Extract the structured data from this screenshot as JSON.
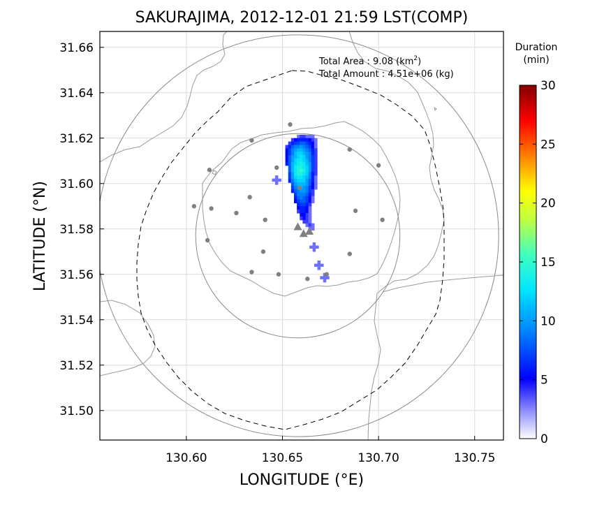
{
  "chart_data": {
    "type": "map",
    "title": "SAKURAJIMA, 2012-12-01 21:59 LST(COMP)",
    "xlabel": "LONGITUDE (°E)",
    "ylabel": "LATITUDE (°N)",
    "xlim": [
      130.555,
      130.765
    ],
    "ylim": [
      31.487,
      31.667
    ],
    "xticks": [
      130.6,
      130.65,
      130.7,
      130.75
    ],
    "yticks": [
      31.5,
      31.52,
      31.54,
      31.56,
      31.58,
      31.6,
      31.62,
      31.64,
      31.66
    ],
    "grid": true,
    "annotations": {
      "area_label": "Total Area   : 9.08 (km",
      "area_sup": "2",
      "area_close": ")",
      "amount": "Total Amount : 4.51e+06 (kg)"
    },
    "colorbar": {
      "label_line1": "Duration",
      "label_line2": "(min)",
      "range": [
        0,
        30
      ],
      "ticks": [
        0,
        5,
        10,
        15,
        20,
        25,
        30
      ]
    },
    "range_circles": [
      {
        "center": [
          130.658,
          31.577
        ],
        "radius_lat": 0.045
      },
      {
        "center": [
          130.658,
          31.577
        ],
        "radius_lat": 0.0885
      }
    ],
    "vents": [
      {
        "lon": 130.658,
        "lat": 31.581
      },
      {
        "lon": 130.661,
        "lat": 31.578
      },
      {
        "lon": 130.664,
        "lat": 31.579
      }
    ],
    "stations": [
      {
        "lon": 130.654,
        "lat": 31.626
      },
      {
        "lon": 130.634,
        "lat": 31.619
      },
      {
        "lon": 130.685,
        "lat": 31.615
      },
      {
        "lon": 130.7,
        "lat": 31.608
      },
      {
        "lon": 130.612,
        "lat": 31.606
      },
      {
        "lon": 130.647,
        "lat": 31.607
      },
      {
        "lon": 130.659,
        "lat": 31.598
      },
      {
        "lon": 130.604,
        "lat": 31.59
      },
      {
        "lon": 130.613,
        "lat": 31.589
      },
      {
        "lon": 130.633,
        "lat": 31.594
      },
      {
        "lon": 130.626,
        "lat": 31.587
      },
      {
        "lon": 130.641,
        "lat": 31.584
      },
      {
        "lon": 130.688,
        "lat": 31.588
      },
      {
        "lon": 130.702,
        "lat": 31.584
      },
      {
        "lon": 130.611,
        "lat": 31.575
      },
      {
        "lon": 130.64,
        "lat": 31.57
      },
      {
        "lon": 130.685,
        "lat": 31.569
      },
      {
        "lon": 130.634,
        "lat": 31.561
      },
      {
        "lon": 130.648,
        "lat": 31.56
      },
      {
        "lon": 130.663,
        "lat": 31.558
      },
      {
        "lon": 130.673,
        "lat": 31.56
      }
    ],
    "plume": {
      "cell_lon": 0.0015,
      "cell_lat": 0.0015,
      "rows": [
        {
          "lat": 31.62,
          "lon0": 130.6575,
          "vals": [
            3,
            4,
            4,
            3,
            3,
            3
          ]
        },
        {
          "lat": 31.6185,
          "lon0": 130.6545,
          "vals": [
            4,
            5,
            6,
            6,
            6,
            6,
            5,
            4,
            3
          ]
        },
        {
          "lat": 31.617,
          "lon0": 130.653,
          "vals": [
            4,
            6,
            7,
            7,
            8,
            8,
            7,
            6,
            5,
            3
          ]
        },
        {
          "lat": 31.6155,
          "lon0": 130.6515,
          "vals": [
            4,
            6,
            8,
            9,
            9,
            10,
            9,
            8,
            7,
            5,
            3
          ]
        },
        {
          "lat": 31.614,
          "lon0": 130.6515,
          "vals": [
            5,
            7,
            9,
            10,
            11,
            11,
            10,
            9,
            8,
            6,
            4
          ]
        },
        {
          "lat": 31.6125,
          "lon0": 130.6515,
          "vals": [
            5,
            7,
            9,
            11,
            12,
            12,
            11,
            10,
            9,
            6,
            4
          ]
        },
        {
          "lat": 31.611,
          "lon0": 130.6515,
          "vals": [
            5,
            8,
            10,
            11,
            12,
            13,
            12,
            10,
            9,
            7,
            4
          ]
        },
        {
          "lat": 31.6095,
          "lon0": 130.6515,
          "vals": [
            5,
            8,
            10,
            12,
            13,
            13,
            12,
            11,
            9,
            7,
            4
          ]
        },
        {
          "lat": 31.608,
          "lon0": 130.6515,
          "vals": [
            6,
            8,
            11,
            12,
            13,
            14,
            13,
            11,
            10,
            7,
            4
          ]
        },
        {
          "lat": 31.6065,
          "lon0": 130.653,
          "vals": [
            8,
            11,
            13,
            14,
            14,
            13,
            12,
            10,
            7,
            4
          ]
        },
        {
          "lat": 31.605,
          "lon0": 130.653,
          "vals": [
            8,
            11,
            13,
            14,
            15,
            14,
            12,
            10,
            7,
            4
          ]
        },
        {
          "lat": 31.6035,
          "lon0": 130.653,
          "vals": [
            7,
            10,
            13,
            14,
            14,
            13,
            12,
            9,
            6,
            4
          ]
        },
        {
          "lat": 31.602,
          "lon0": 130.653,
          "vals": [
            7,
            10,
            12,
            13,
            13,
            12,
            11,
            9,
            6,
            3
          ]
        },
        {
          "lat": 31.6005,
          "lon0": 130.653,
          "vals": [
            6,
            9,
            11,
            12,
            12,
            12,
            10,
            8,
            6,
            3
          ]
        },
        {
          "lat": 31.599,
          "lon0": 130.6545,
          "vals": [
            8,
            10,
            11,
            11,
            11,
            10,
            8,
            5,
            3
          ]
        },
        {
          "lat": 31.5975,
          "lon0": 130.6545,
          "vals": [
            7,
            9,
            10,
            11,
            10,
            9,
            7,
            5,
            3
          ]
        },
        {
          "lat": 31.596,
          "lon0": 130.6545,
          "vals": [
            6,
            8,
            9,
            10,
            10,
            9,
            7,
            4
          ]
        },
        {
          "lat": 31.5945,
          "lon0": 130.656,
          "vals": [
            7,
            9,
            9,
            9,
            8,
            6,
            4
          ]
        },
        {
          "lat": 31.593,
          "lon0": 130.656,
          "vals": [
            6,
            8,
            9,
            8,
            7,
            5,
            3
          ]
        },
        {
          "lat": 31.5915,
          "lon0": 130.656,
          "vals": [
            5,
            7,
            8,
            8,
            7,
            5,
            3
          ]
        },
        {
          "lat": 31.59,
          "lon0": 130.6575,
          "vals": [
            6,
            7,
            7,
            6,
            4
          ]
        },
        {
          "lat": 31.5885,
          "lon0": 130.6575,
          "vals": [
            5,
            6,
            6,
            5,
            3
          ]
        },
        {
          "lat": 31.587,
          "lon0": 130.6575,
          "vals": [
            4,
            6,
            6,
            5,
            3
          ]
        },
        {
          "lat": 31.5855,
          "lon0": 130.659,
          "vals": [
            5,
            5,
            4,
            3
          ]
        },
        {
          "lat": 31.584,
          "lon0": 130.659,
          "vals": [
            4,
            5,
            4,
            3
          ]
        },
        {
          "lat": 31.5825,
          "lon0": 130.6605,
          "vals": [
            4,
            4,
            3
          ]
        },
        {
          "lat": 31.581,
          "lon0": 130.662,
          "vals": [
            3,
            4,
            3
          ]
        },
        {
          "lat": 31.5795,
          "lon0": 130.6635,
          "vals": [
            3,
            3
          ]
        }
      ],
      "blobs": [
        {
          "lon": 130.6665,
          "lat": 31.572,
          "v": 2
        },
        {
          "lon": 130.669,
          "lat": 31.564,
          "v": 2
        },
        {
          "lon": 130.672,
          "lat": 31.5585,
          "v": 2
        },
        {
          "lon": 130.647,
          "lat": 31.6015,
          "v": 2
        }
      ]
    }
  }
}
